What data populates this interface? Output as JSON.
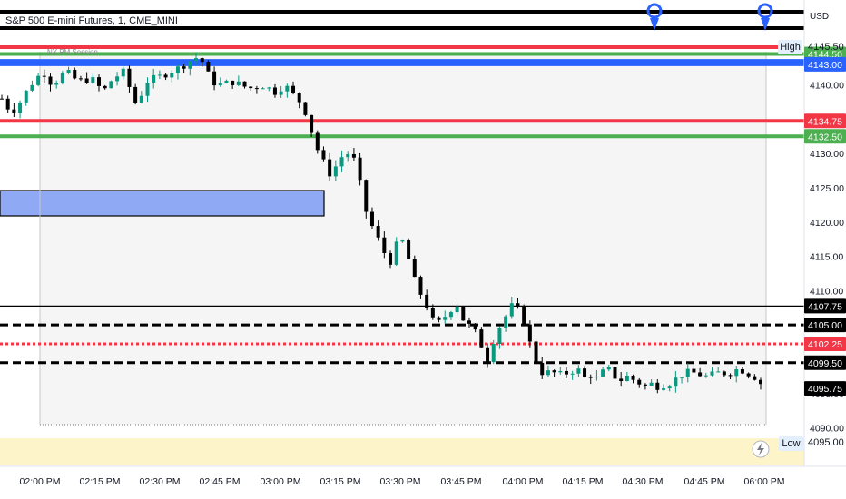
{
  "colors": {
    "up": "#089981",
    "down": "#000000",
    "red": "#f23645",
    "green": "#4caf50",
    "blue": "#2962ff",
    "zone": "#8fa9f5",
    "session_fill": "#f5f5f5",
    "low_band": "#fdf5c9",
    "marker": "#2962ff"
  },
  "header": {
    "title": "S&P 500 E-mini Futures, 1, CME_MINI",
    "session_label": "NY PM Session"
  },
  "price_axis": {
    "currency": "USD",
    "high_label": "High",
    "low_label": "Low",
    "top_tag": "4145.50",
    "low_tag": "4095.00",
    "ticks": [
      "4145.50",
      "4140.00",
      "4135.00",
      "4130.00",
      "4125.00",
      "4120.00",
      "4115.00",
      "4110.00",
      "4105.00",
      "4100.00",
      "4095.00",
      "4090.00"
    ]
  },
  "time_axis": {
    "labels": [
      "02:00 PM",
      "02:15 PM",
      "02:30 PM",
      "02:45 PM",
      "03:00 PM",
      "03:15 PM",
      "03:30 PM",
      "03:45 PM",
      "04:00 PM",
      "04:15 PM",
      "04:30 PM",
      "04:45 PM",
      "06:00 PM"
    ]
  },
  "levels": [
    {
      "name": "high-line",
      "price": 4145.5,
      "label": "",
      "style": "solid",
      "color": "#f23645"
    },
    {
      "name": "green-upper",
      "price": 4144.5,
      "label": "4144.50",
      "style": "solid",
      "color": "#4caf50"
    },
    {
      "name": "blue-upper",
      "price": 4143.5,
      "label": "",
      "style": "solid",
      "color": "#2962ff"
    },
    {
      "name": "blue-lower",
      "price": 4143.0,
      "label": "4143.00",
      "style": "solid",
      "color": "#2962ff"
    },
    {
      "name": "red-middle",
      "price": 4134.75,
      "label": "4134.75",
      "style": "solid",
      "color": "#f23645"
    },
    {
      "name": "green-middle",
      "price": 4132.5,
      "label": "4132.50",
      "style": "solid",
      "color": "#4caf50"
    },
    {
      "name": "black-solid",
      "price": 4107.75,
      "label": "4107.75",
      "style": "solid",
      "color": "#000000"
    },
    {
      "name": "black-dashed-upper",
      "price": 4105.0,
      "label": "4105.00",
      "style": "dashed",
      "color": "#000000"
    },
    {
      "name": "red-dotted",
      "price": 4102.25,
      "label": "4102.25",
      "style": "dotted",
      "color": "#f23645"
    },
    {
      "name": "black-dashed-lower",
      "price": 4099.5,
      "label": "4099.50",
      "style": "dashed",
      "color": "#000000"
    },
    {
      "name": "last-price",
      "price": 4095.75,
      "label": "4095.75",
      "style": "none",
      "color": "#000000"
    }
  ],
  "chart_data": {
    "type": "candlestick",
    "title": "S&P 500 E-mini Futures, 1, CME_MINI",
    "currency": "USD",
    "ylim": [
      4089,
      4148
    ],
    "candle_count": 126,
    "path": [
      [
        0,
        4138
      ],
      [
        3,
        4136
      ],
      [
        5,
        4137
      ],
      [
        9,
        4140
      ],
      [
        13,
        4142
      ],
      [
        16,
        4140
      ],
      [
        20,
        4142
      ],
      [
        24,
        4140.5
      ],
      [
        28,
        4141
      ],
      [
        32,
        4139
      ],
      [
        35,
        4141
      ],
      [
        39,
        4142
      ],
      [
        41,
        4138
      ],
      [
        43,
        4137
      ],
      [
        45,
        4140.5
      ],
      [
        49,
        4141
      ],
      [
        53,
        4142
      ],
      [
        56,
        4142.5
      ],
      [
        59,
        4143.5
      ],
      [
        61,
        4144
      ],
      [
        63,
        4143.5
      ],
      [
        66,
        4140.5
      ],
      [
        69,
        4140
      ],
      [
        73,
        4140.5
      ],
      [
        75,
        4140
      ],
      [
        78,
        4139.5
      ],
      [
        82,
        4140
      ],
      [
        86,
        4139
      ],
      [
        89,
        4140
      ],
      [
        92,
        4138.5
      ],
      [
        95,
        4137
      ],
      [
        97,
        4134
      ],
      [
        99,
        4131
      ],
      [
        101,
        4129
      ],
      [
        103,
        4127
      ],
      [
        105,
        4128
      ],
      [
        107,
        4129.5
      ],
      [
        109,
        4130
      ],
      [
        111,
        4129
      ],
      [
        112,
        4128
      ],
      [
        113,
        4125
      ],
      [
        115,
        4121
      ],
      [
        117,
        4119
      ],
      [
        119,
        4117
      ],
      [
        121,
        4115
      ],
      [
        123,
        4114
      ],
      [
        125,
        4118
      ],
      [
        127,
        4116.5
      ],
      [
        129,
        4113
      ],
      [
        131,
        4110
      ],
      [
        133,
        4109
      ],
      [
        135,
        4106
      ],
      [
        137,
        4105
      ],
      [
        139,
        4106
      ],
      [
        141,
        4107
      ],
      [
        143,
        4108.5
      ],
      [
        145,
        4106
      ],
      [
        147,
        4105
      ],
      [
        149,
        4104
      ],
      [
        151,
        4102
      ],
      [
        153,
        4100
      ],
      [
        155,
        4103
      ],
      [
        157,
        4105
      ],
      [
        159,
        4106.5
      ],
      [
        161,
        4108
      ],
      [
        163,
        4107
      ],
      [
        165,
        4105
      ],
      [
        167,
        4101
      ],
      [
        169,
        4099
      ],
      [
        171,
        4097.5
      ],
      [
        173,
        4098.5
      ],
      [
        175,
        4097.5
      ],
      [
        177,
        4098
      ],
      [
        179,
        4098
      ],
      [
        181,
        4099
      ],
      [
        183,
        4097
      ],
      [
        185,
        4098
      ],
      [
        187,
        4097
      ],
      [
        189,
        4098
      ],
      [
        191,
        4098.5
      ],
      [
        193,
        4097.5
      ],
      [
        195,
        4097
      ],
      [
        197,
        4097.5
      ],
      [
        199,
        4097
      ],
      [
        201,
        4096.5
      ],
      [
        203,
        4096
      ],
      [
        205,
        4096.5
      ],
      [
        207,
        4096
      ],
      [
        209,
        4096.5
      ],
      [
        211,
        4096.5
      ],
      [
        213,
        4097.5
      ],
      [
        215,
        4098
      ],
      [
        217,
        4098
      ],
      [
        219,
        4098
      ],
      [
        221,
        4097.5
      ],
      [
        223,
        4097.5
      ],
      [
        225,
        4098
      ],
      [
        227,
        4098
      ],
      [
        229,
        4098
      ],
      [
        231,
        4098.5
      ],
      [
        233,
        4098.5
      ],
      [
        235,
        4098
      ],
      [
        237,
        4097.5
      ],
      [
        239,
        4096.5
      ]
    ],
    "levels": [
      4145.5,
      4144.5,
      4143.5,
      4143.0,
      4134.75,
      4132.5,
      4107.75,
      4105.0,
      4102.25,
      4099.5
    ],
    "zone": {
      "from": 4126,
      "to": 4129.5
    }
  }
}
